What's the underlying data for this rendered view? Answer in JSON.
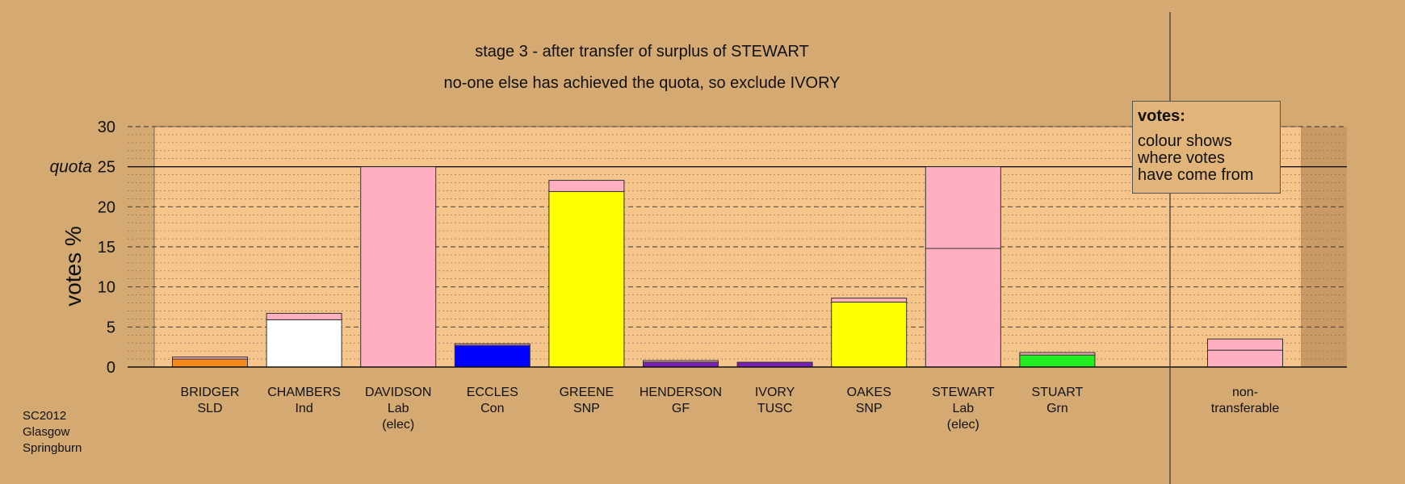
{
  "title": "stage 3 - after transfer of surplus of STEWART",
  "subtitle": "no-one else has achieved the quota, so exclude IVORY",
  "legend": {
    "heading": "votes:",
    "lines": [
      "colour shows",
      "where votes",
      "have come from"
    ]
  },
  "source": [
    "SC2012",
    "Glasgow",
    "Springburn"
  ],
  "colors": {
    "background": "#d4a972",
    "plot_area": "#f5c58c",
    "SLD": "#f5891d",
    "Ind": "#ffffff",
    "Lab": "#ffb0c0",
    "Con": "#0000ff",
    "SNP": "#ffff00",
    "GF": "#7a1fb5",
    "TUSC": "#7a1fb5",
    "Grn": "#22ee22"
  },
  "chart_data": {
    "type": "bar",
    "stacked": true,
    "ylabel": "votes %",
    "ylim": [
      0,
      30
    ],
    "yticks": [
      0,
      5,
      10,
      15,
      20,
      25,
      30
    ],
    "quota": 25,
    "quota_label": "quota",
    "grid": true,
    "candidates": [
      {
        "name": "BRIDGER",
        "party": "SLD",
        "extra": "",
        "segments": [
          {
            "color": "#f5891d",
            "value": 1.0
          },
          {
            "color": "#ffb0c0",
            "value": 0.25
          }
        ]
      },
      {
        "name": "CHAMBERS",
        "party": "Ind",
        "extra": "",
        "segments": [
          {
            "color": "#ffffff",
            "value": 5.9
          },
          {
            "color": "#ffb0c0",
            "value": 0.8
          }
        ]
      },
      {
        "name": "DAVIDSON",
        "party": "Lab",
        "extra": "(elec)",
        "segments": [
          {
            "color": "#ffb0c0",
            "value": 25.0
          }
        ]
      },
      {
        "name": "ECCLES",
        "party": "Con",
        "extra": "",
        "segments": [
          {
            "color": "#0000ff",
            "value": 2.7
          },
          {
            "color": "#ffb0c0",
            "value": 0.2
          }
        ]
      },
      {
        "name": "GREENE",
        "party": "SNP",
        "extra": "",
        "segments": [
          {
            "color": "#ffff00",
            "value": 21.9
          },
          {
            "color": "#ffb0c0",
            "value": 1.4
          }
        ]
      },
      {
        "name": "HENDERSON",
        "party": "GF",
        "extra": "",
        "segments": [
          {
            "color": "#7a1fb5",
            "value": 0.6
          },
          {
            "color": "#ffb0c0",
            "value": 0.2
          }
        ]
      },
      {
        "name": "IVORY",
        "party": "TUSC",
        "extra": "",
        "segments": [
          {
            "color": "#7a1fb5",
            "value": 0.6
          }
        ]
      },
      {
        "name": "OAKES",
        "party": "SNP",
        "extra": "",
        "segments": [
          {
            "color": "#ffff00",
            "value": 8.1
          },
          {
            "color": "#ffb0c0",
            "value": 0.5
          }
        ]
      },
      {
        "name": "STEWART",
        "party": "Lab",
        "extra": "(elec)",
        "segments": [
          {
            "color": "#ffb0c0",
            "value": 14.8
          },
          {
            "color": "#ffb0c0",
            "value": 10.2
          }
        ]
      },
      {
        "name": "STUART",
        "party": "Grn",
        "extra": "",
        "segments": [
          {
            "color": "#22ee22",
            "value": 1.5
          },
          {
            "color": "#ffb0c0",
            "value": 0.3
          }
        ]
      }
    ],
    "nontransferable": {
      "line1": "non-",
      "line2": "transferable",
      "segments": [
        {
          "color": "#ffb0c0",
          "value": 2.1
        },
        {
          "color": "#ffb0c0",
          "value": 1.4
        }
      ]
    }
  }
}
